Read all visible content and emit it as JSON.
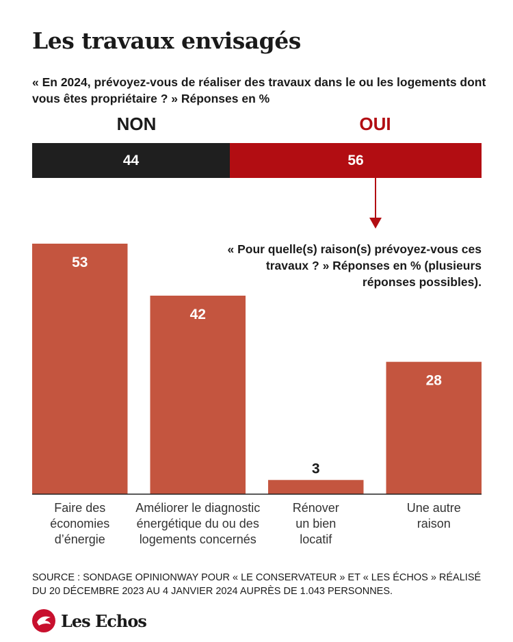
{
  "header": {
    "title": "Les travaux envisagés",
    "question": "« En 2024, prévoyez-vous de réaliser des travaux dans le ou les logements dont vous êtes propriétaire ? » Réponses en %"
  },
  "split": {
    "non_label": "NON",
    "oui_label": "OUI",
    "non_value": 44,
    "oui_value": 56,
    "non_color": "#1f1f1f",
    "oui_color": "#b20d12"
  },
  "subquestion": "« Pour quelle(s) raison(s) prévoyez-vous ces travaux ? » Réponses en % (plusieurs réponses possibles).",
  "chart_data": {
    "type": "bar",
    "categories": [
      [
        "Faire des",
        "économies",
        "d’énergie"
      ],
      [
        "Améliorer le diagnostic",
        "énergétique du ou des",
        "logements concernés"
      ],
      [
        "Rénover",
        "un bien",
        "locatif"
      ],
      [
        "Une autre",
        "raison"
      ]
    ],
    "values": [
      53,
      42,
      3,
      28
    ],
    "bar_color": "#c4553f",
    "ylim": [
      0,
      53
    ]
  },
  "source": "SOURCE : SONDAGE OPINIONWAY POUR « LE CONSERVATEUR » ET « LES ÉCHOS » RÉALISÉ DU 20 DÉCEMBRE 2023 AU 4 JANVIER 2024 AUPRÈS DE 1.043 PERSONNES.",
  "logo": {
    "name": "Les Echos",
    "icon": "les-echos-logo-icon"
  }
}
